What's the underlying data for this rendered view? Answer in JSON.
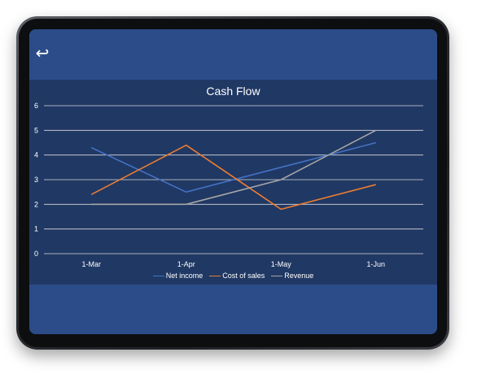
{
  "screen": {
    "back_icon": "back-arrow-icon",
    "back_glyph": "↩"
  },
  "chart_data": {
    "type": "line",
    "title": "Cash Flow",
    "xlabel": "",
    "ylabel": "",
    "categories": [
      "1-Mar",
      "1-Apr",
      "1-May",
      "1-Jun"
    ],
    "ylim": [
      0,
      6
    ],
    "yticks": [
      0,
      1,
      2,
      3,
      4,
      5,
      6
    ],
    "grid": true,
    "legend_position": "bottom",
    "series": [
      {
        "name": "Net income",
        "color": "#4472c4",
        "values": [
          4.3,
          2.5,
          3.5,
          4.5
        ]
      },
      {
        "name": "Cost of sales",
        "color": "#ed7d31",
        "values": [
          2.4,
          4.4,
          1.8,
          2.8
        ]
      },
      {
        "name": "Revenue",
        "color": "#a5a5a5",
        "values": [
          2.0,
          2.0,
          3.0,
          5.0
        ]
      }
    ]
  },
  "colors": {
    "screen_background": "#2c4c89",
    "chart_background": "#203864",
    "gridline": "#d9d9d9",
    "text": "#ffffff"
  }
}
